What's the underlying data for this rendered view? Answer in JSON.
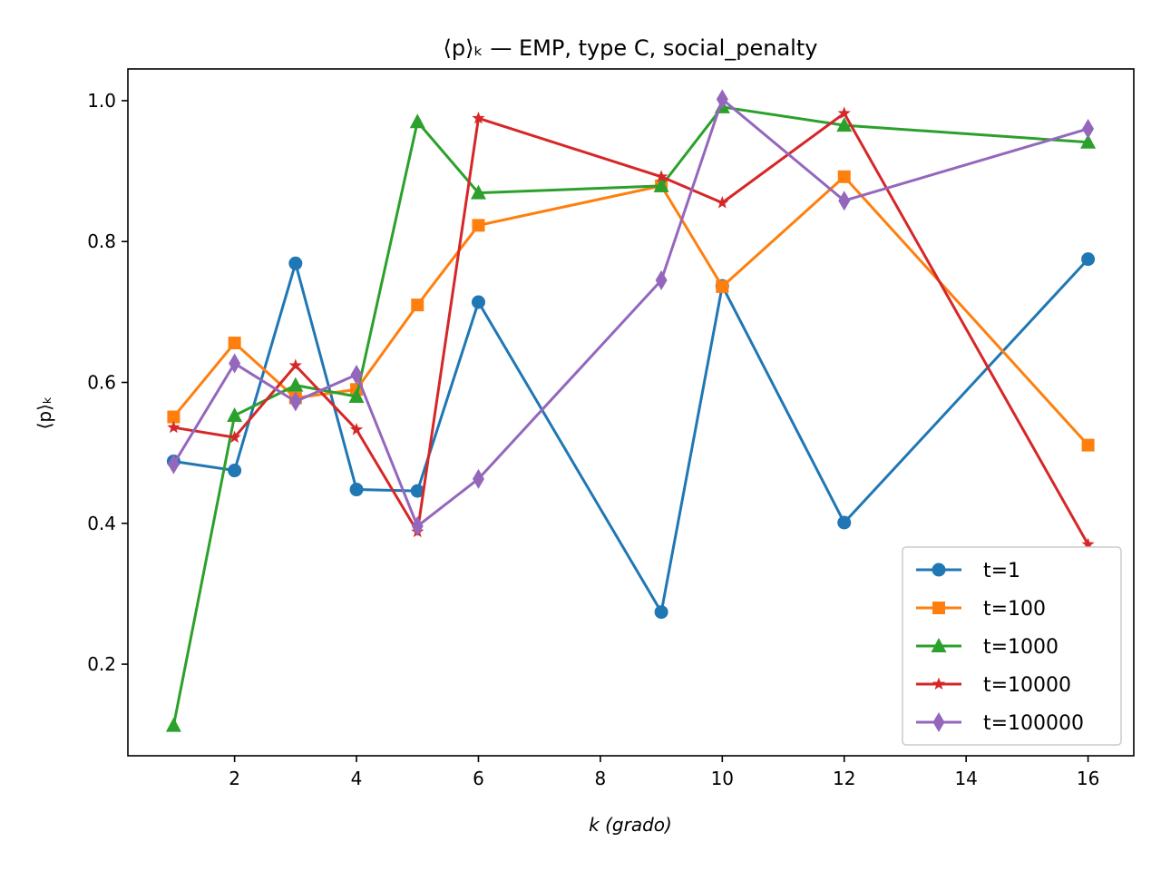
{
  "chart_data": {
    "type": "line",
    "title": "⟨p⟩ₖ — EMP, type C, social_penalty",
    "xlabel": "k (grado)",
    "ylabel": "⟨p⟩ₖ",
    "xlim": [
      0.25,
      16.75
    ],
    "ylim": [
      0.07,
      1.045
    ],
    "xticks": [
      2,
      4,
      6,
      8,
      10,
      12,
      14,
      16
    ],
    "yticks": [
      0.2,
      0.4,
      0.6,
      0.8,
      1.0
    ],
    "xtick_labels": [
      "2",
      "4",
      "6",
      "8",
      "10",
      "12",
      "14",
      "16"
    ],
    "ytick_labels": [
      "0.2",
      "0.4",
      "0.6",
      "0.8",
      "1.0"
    ],
    "x": [
      1,
      2,
      3,
      4,
      5,
      6,
      9,
      10,
      12,
      16
    ],
    "grid": false,
    "legend_position": "lower right",
    "series": [
      {
        "name": "t=1",
        "marker": "circle",
        "color": "#1f77b4",
        "values": [
          0.488,
          0.475,
          0.769,
          0.448,
          0.446,
          0.714,
          0.274,
          0.737,
          0.401,
          0.775
        ]
      },
      {
        "name": "t=100",
        "marker": "square",
        "color": "#ff7f0e",
        "values": [
          0.551,
          0.656,
          0.578,
          0.59,
          0.71,
          0.823,
          0.879,
          0.736,
          0.892,
          0.511
        ]
      },
      {
        "name": "t=1000",
        "marker": "triangle",
        "color": "#2ca02c",
        "values": [
          0.113,
          0.553,
          0.596,
          0.58,
          0.97,
          0.869,
          0.879,
          0.991,
          0.965,
          0.941
        ]
      },
      {
        "name": "t=10000",
        "marker": "star",
        "color": "#d62728",
        "values": [
          0.536,
          0.522,
          0.624,
          0.533,
          0.388,
          0.975,
          0.892,
          0.855,
          0.982,
          0.37
        ]
      },
      {
        "name": "t=100000",
        "marker": "diamond",
        "color": "#9467bd",
        "values": [
          0.484,
          0.627,
          0.573,
          0.611,
          0.396,
          0.463,
          0.745,
          1.002,
          0.858,
          0.96
        ]
      }
    ]
  }
}
